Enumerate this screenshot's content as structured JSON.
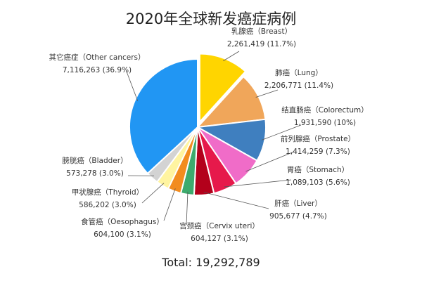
{
  "chart_data": {
    "type": "pie",
    "title": "2020年全球新发癌症病例",
    "total_label": "Total: 19,292,789",
    "slices": [
      {
        "name": "乳腺癌（Breast）",
        "value": 2261419,
        "value_label": "2,261,419 (11.7%)",
        "color": "#FFD500",
        "exploded": true
      },
      {
        "name": "肺癌（Lung）",
        "value": 2206771,
        "value_label": "2,206,771 (11.4%)",
        "color": "#F0A65A"
      },
      {
        "name": "结直肠癌（Colorectum）",
        "value": 1931590,
        "value_label": "1,931,590 (10%)",
        "color": "#3F7FBF"
      },
      {
        "name": "前列腺癌（Prostate）",
        "value": 1414259,
        "value_label": "1,414,259 (7.3%)",
        "color": "#F06CC8"
      },
      {
        "name": "胃癌（Stomach）",
        "value": 1089103,
        "value_label": "1,089,103 (5.6%)",
        "color": "#E6194B"
      },
      {
        "name": "肝癌（Liver）",
        "value": 905677,
        "value_label": "905,677 (4.7%)",
        "color": "#B3001B"
      },
      {
        "name": "宫颈癌（Cervix uteri）",
        "value": 604127,
        "value_label": "604,127 (3.1%)",
        "color": "#3DAA6D"
      },
      {
        "name": "食管癌（Oesophagus）",
        "value": 604100,
        "value_label": "604,100 (3.1%)",
        "color": "#F28C1F"
      },
      {
        "name": "甲状腺癌（Thyroid）",
        "value": 586202,
        "value_label": "586,202 (3.0%)",
        "color": "#FFF4A0"
      },
      {
        "name": "膀胱癌（Bladder）",
        "value": 573278,
        "value_label": "573,278 (3.0%)",
        "color": "#D3D3D3"
      },
      {
        "name": "其它癌症（Other cancers）",
        "value": 7116263,
        "value_label": "7,116,263 (36.9%)",
        "color": "#2196F3"
      }
    ]
  }
}
